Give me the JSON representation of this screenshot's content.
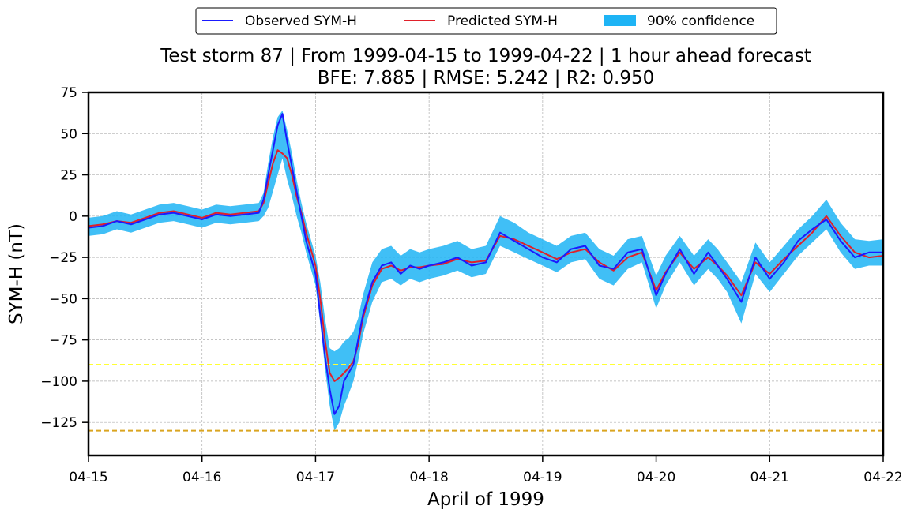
{
  "chart_data": {
    "type": "line",
    "title": "Test storm 87 | From 1999-04-15 to 1999-04-22 | 1 hour ahead forecast",
    "subtitle": "BFE: 7.885 | RMSE: 5.242 | R2: 0.950",
    "xlabel": "April of 1999",
    "ylabel": "SYM-H (nT)",
    "xlim": [
      "1999-04-15",
      "1999-04-22"
    ],
    "ylim": [
      -145,
      75
    ],
    "x_ticks": [
      "04-15",
      "04-16",
      "04-17",
      "04-18",
      "04-19",
      "04-20",
      "04-21",
      "04-22"
    ],
    "y_ticks": [
      75,
      50,
      25,
      0,
      -25,
      -50,
      -75,
      -100,
      -125
    ],
    "y_tick_labels": [
      "75",
      "50",
      "25",
      "0",
      "−25",
      "−50",
      "−75",
      "−100",
      "−125"
    ],
    "grid": true,
    "legend_position": "top-center",
    "x": [
      "1999-04-15 00:00",
      "1999-04-15 03:00",
      "1999-04-15 06:00",
      "1999-04-15 09:00",
      "1999-04-15 12:00",
      "1999-04-15 15:00",
      "1999-04-15 18:00",
      "1999-04-15 21:00",
      "1999-04-16 00:00",
      "1999-04-16 03:00",
      "1999-04-16 06:00",
      "1999-04-16 09:00",
      "1999-04-16 12:00",
      "1999-04-16 13:00",
      "1999-04-16 14:00",
      "1999-04-16 15:00",
      "1999-04-16 16:00",
      "1999-04-16 17:00",
      "1999-04-16 18:00",
      "1999-04-16 19:00",
      "1999-04-16 20:00",
      "1999-04-16 21:00",
      "1999-04-16 22:00",
      "1999-04-17 00:00",
      "1999-04-17 01:00",
      "1999-04-17 02:00",
      "1999-04-17 03:00",
      "1999-04-17 04:00",
      "1999-04-17 05:00",
      "1999-04-17 06:00",
      "1999-04-17 07:00",
      "1999-04-17 08:00",
      "1999-04-17 09:00",
      "1999-04-17 10:00",
      "1999-04-17 12:00",
      "1999-04-17 14:00",
      "1999-04-17 16:00",
      "1999-04-17 18:00",
      "1999-04-17 20:00",
      "1999-04-17 22:00",
      "1999-04-18 00:00",
      "1999-04-18 03:00",
      "1999-04-18 06:00",
      "1999-04-18 09:00",
      "1999-04-18 12:00",
      "1999-04-18 15:00",
      "1999-04-18 18:00",
      "1999-04-18 21:00",
      "1999-04-19 00:00",
      "1999-04-19 03:00",
      "1999-04-19 06:00",
      "1999-04-19 09:00",
      "1999-04-19 12:00",
      "1999-04-19 15:00",
      "1999-04-19 18:00",
      "1999-04-19 21:00",
      "1999-04-20 00:00",
      "1999-04-20 02:00",
      "1999-04-20 05:00",
      "1999-04-20 08:00",
      "1999-04-20 11:00",
      "1999-04-20 13:00",
      "1999-04-20 15:00",
      "1999-04-20 18:00",
      "1999-04-20 21:00",
      "1999-04-21 00:00",
      "1999-04-21 03:00",
      "1999-04-21 06:00",
      "1999-04-21 09:00",
      "1999-04-21 12:00",
      "1999-04-21 15:00",
      "1999-04-21 18:00",
      "1999-04-21 21:00",
      "1999-04-22 00:00"
    ],
    "series": [
      {
        "name": "Observed SYM-H",
        "color": "#1a1aff",
        "values": [
          -7,
          -6,
          -3,
          -5,
          -2,
          1,
          2,
          0,
          -2,
          1,
          0,
          1,
          2,
          10,
          25,
          40,
          55,
          62,
          45,
          30,
          15,
          0,
          -15,
          -35,
          -60,
          -85,
          -105,
          -120,
          -115,
          -100,
          -95,
          -90,
          -75,
          -60,
          -40,
          -30,
          -28,
          -35,
          -30,
          -32,
          -30,
          -28,
          -25,
          -30,
          -28,
          -10,
          -15,
          -20,
          -25,
          -28,
          -20,
          -18,
          -30,
          -32,
          -22,
          -20,
          -48,
          -35,
          -20,
          -35,
          -22,
          -30,
          -38,
          -52,
          -25,
          -38,
          -28,
          -15,
          -8,
          -2,
          -15,
          -25,
          -22,
          -22
        ]
      },
      {
        "name": "Predicted SYM-H",
        "color": "#e0202a",
        "values": [
          -6,
          -5,
          -3,
          -4,
          -1,
          2,
          3,
          1,
          -1,
          2,
          1,
          2,
          3,
          8,
          20,
          32,
          40,
          38,
          35,
          25,
          12,
          2,
          -10,
          -30,
          -50,
          -75,
          -95,
          -100,
          -98,
          -95,
          -92,
          -88,
          -78,
          -62,
          -42,
          -32,
          -30,
          -33,
          -31,
          -31,
          -30,
          -29,
          -26,
          -28,
          -27,
          -12,
          -14,
          -18,
          -22,
          -26,
          -22,
          -20,
          -28,
          -33,
          -25,
          -22,
          -45,
          -34,
          -22,
          -32,
          -25,
          -30,
          -36,
          -48,
          -28,
          -35,
          -26,
          -18,
          -10,
          0,
          -12,
          -22,
          -25,
          -24
        ]
      }
    ],
    "confidence_band": {
      "name": "90% confidence",
      "color": "#1eb4f5",
      "lower": [
        -12,
        -11,
        -8,
        -10,
        -7,
        -4,
        -3,
        -5,
        -7,
        -4,
        -5,
        -4,
        -3,
        0,
        5,
        15,
        25,
        35,
        22,
        12,
        0,
        -10,
        -22,
        -42,
        -65,
        -92,
        -115,
        -130,
        -125,
        -115,
        -108,
        -100,
        -88,
        -72,
        -52,
        -40,
        -38,
        -42,
        -38,
        -40,
        -38,
        -36,
        -33,
        -37,
        -35,
        -18,
        -22,
        -26,
        -30,
        -34,
        -28,
        -26,
        -38,
        -42,
        -32,
        -28,
        -56,
        -42,
        -28,
        -42,
        -32,
        -38,
        -46,
        -65,
        -35,
        -46,
        -35,
        -24,
        -16,
        -8,
        -22,
        -32,
        -30,
        -30
      ],
      "upper": [
        -1,
        0,
        3,
        1,
        4,
        7,
        8,
        6,
        4,
        7,
        6,
        7,
        8,
        14,
        32,
        48,
        60,
        64,
        52,
        38,
        22,
        8,
        -4,
        -24,
        -40,
        -62,
        -80,
        -82,
        -80,
        -76,
        -74,
        -70,
        -62,
        -48,
        -28,
        -20,
        -18,
        -24,
        -20,
        -22,
        -20,
        -18,
        -15,
        -20,
        -18,
        0,
        -4,
        -10,
        -14,
        -18,
        -12,
        -10,
        -20,
        -24,
        -14,
        -12,
        -36,
        -24,
        -12,
        -24,
        -14,
        -20,
        -28,
        -40,
        -16,
        -28,
        -18,
        -8,
        0,
        10,
        -4,
        -14,
        -15,
        -14
      ]
    },
    "reference_lines": [
      {
        "value": -90,
        "color": "#ffff33",
        "style": "dashed"
      },
      {
        "value": -130,
        "color": "#daa520",
        "style": "dashed"
      }
    ]
  },
  "legend": {
    "observed": "Observed SYM-H",
    "predicted": "Predicted SYM-H",
    "confidence": "90% confidence"
  }
}
